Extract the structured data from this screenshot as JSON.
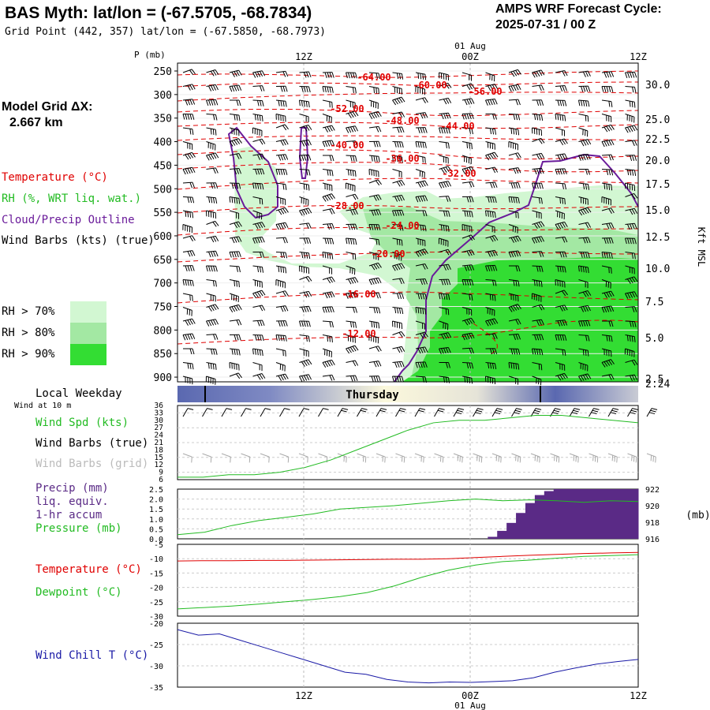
{
  "header": {
    "title": "BAS Myth:  lat/lon = (-67.5705, -68.7834)",
    "subtitle": "Grid Point (442, 357) lat/lon = (-67.5850, -68.7973)",
    "cycle_line1": "AMPS WRF Forecast Cycle:",
    "cycle_line2": "2025-07-31 / 00  Z"
  },
  "sidebar": {
    "grid_title": "Model Grid ΔX:",
    "grid_value": "2.667 km",
    "temperature": "Temperature (°C)",
    "rh": "RH (%, WRT liq. wat.)",
    "cloud": "Cloud/Precip Outline",
    "wind": "Wind Barbs (kts) (true)",
    "rh70": "RH > 70%",
    "rh80": "RH > 80%",
    "rh90": "RH > 90%",
    "local_weekday": "Local Weekday",
    "wind10m": "Wind at 10 m",
    "wind_spd": "Wind Spd (kts)",
    "wind_true": "Wind Barbs (true)",
    "wind_grid": "Wind Barbs (grid)",
    "precip1": "Precip (mm)",
    "precip2": "liq. equiv.",
    "precip3": "1-hr accum",
    "pressure": "Pressure (mb)",
    "temp2": "Temperature (°C)",
    "dewpoint": "Dewpoint (°C)",
    "windchill": "Wind Chill T (°C)"
  },
  "colors": {
    "temperature": "#e00000",
    "rh": "#22cc22",
    "cloud": "#6a1b9a",
    "rh70": "#d2f7d2",
    "rh80": "#a3e8a3",
    "rh90": "#33dd33",
    "precip": "#5a2a86",
    "windchill": "#1a1aa6",
    "weekday_dark": "#5a68b0",
    "weekday_light": "#fbf8dc"
  },
  "chart_data": [
    {
      "type": "heatmap",
      "title": "",
      "ylabel": "P (mb)",
      "ylabel_right": "Kft MSL",
      "x_ticks_top": [
        "12Z",
        "00Z",
        "12Z"
      ],
      "x_date_top": "01 Aug",
      "y_ticks": [
        250,
        300,
        350,
        400,
        450,
        500,
        550,
        600,
        650,
        700,
        750,
        800,
        850,
        900
      ],
      "y_ticks_right": [
        "30.0",
        "25.0",
        "22.5",
        "20.0",
        "17.5",
        "15.0",
        "12.5",
        "10.0",
        "7.5",
        "5.0",
        "2.5",
        "2.24"
      ],
      "temperature_labels": [
        "-64.00",
        "-60.00",
        "-56.00",
        "-52.00",
        "-48.00",
        "-44.00",
        "-40.00",
        "-36.00",
        "-32.00",
        "-28.00",
        "-24.00",
        "-20.00",
        "-16.00",
        "-12.00"
      ],
      "wind_barbs": "true"
    },
    {
      "type": "table",
      "weekday": "Thursday"
    },
    {
      "type": "line",
      "series": [
        {
          "name": "Wind Spd (kts)",
          "values": [
            7,
            7,
            8,
            8,
            9,
            11,
            14,
            18,
            22,
            26,
            29,
            30,
            30,
            31,
            32,
            32,
            31,
            30,
            29
          ]
        }
      ],
      "y_ticks": [
        6,
        9,
        12,
        15,
        18,
        21,
        24,
        27,
        30,
        33,
        36
      ],
      "ylim": [
        6,
        36
      ]
    },
    {
      "type": "bar",
      "series": [
        {
          "name": "Precip (mm)",
          "values": [
            0,
            0,
            0,
            0,
            0,
            0,
            0,
            0,
            0,
            0,
            0,
            0,
            0,
            0,
            0,
            0,
            0,
            0,
            0,
            0,
            0,
            0,
            0,
            0,
            0,
            0,
            0,
            0,
            0,
            0,
            0,
            0,
            0,
            0.1,
            0.4,
            0.8,
            1.3,
            1.8,
            2.2,
            2.4,
            2.5,
            2.5,
            2.5,
            2.5,
            2.5,
            2.5,
            2.5,
            2.5,
            2.5
          ]
        },
        {
          "name": "Pressure (mb)",
          "values": [
            916.5,
            916.8,
            917.6,
            918.2,
            918.6,
            919.0,
            919.6,
            919.8,
            920.0,
            920.3,
            920.6,
            920.8,
            920.6,
            920.7,
            920.6,
            920.4,
            920.6,
            920.5
          ]
        }
      ],
      "y_ticks": [
        "0.0",
        "0.5",
        "1.0",
        "1.5",
        "2.0",
        "2.5"
      ],
      "y_ticks_right": [
        916,
        918,
        920,
        922
      ],
      "ylim": [
        0,
        2.5
      ],
      "ylim_right": [
        916,
        922
      ]
    },
    {
      "type": "line",
      "series": [
        {
          "name": "Temperature (°C)",
          "values": [
            -10.8,
            -10.7,
            -10.7,
            -10.6,
            -10.6,
            -10.5,
            -10.4,
            -10.3,
            -10.2,
            -10.2,
            -10.0,
            -9.6,
            -9.2,
            -8.8,
            -8.5,
            -8.2,
            -8.0,
            -7.8
          ]
        },
        {
          "name": "Dewpoint (°C)",
          "values": [
            -27.5,
            -27.0,
            -26.5,
            -25.8,
            -25.0,
            -24.2,
            -23.2,
            -21.8,
            -19.5,
            -16.5,
            -14.0,
            -12.2,
            -11.0,
            -10.5,
            -9.8,
            -9.2,
            -8.9,
            -8.6
          ]
        }
      ],
      "y_ticks": [
        -5,
        -10,
        -15,
        -20,
        -25,
        -30
      ],
      "ylim": [
        -30,
        -5
      ]
    },
    {
      "type": "line",
      "series": [
        {
          "name": "Wind Chill T (°C)",
          "values": [
            -21.5,
            -22.8,
            -22.5,
            -24.0,
            -25.5,
            -27.0,
            -28.5,
            -30.0,
            -31.5,
            -32.0,
            -33.2,
            -33.8,
            -34.0,
            -33.8,
            -33.9,
            -33.7,
            -33.5,
            -32.8,
            -31.5,
            -30.5,
            -29.6,
            -29.0,
            -28.5
          ]
        }
      ],
      "y_ticks": [
        -20,
        -25,
        -30,
        -35
      ],
      "ylim": [
        -35,
        -20
      ],
      "x_ticks_bottom": [
        "12Z",
        "00Z",
        "12Z"
      ],
      "x_date_bottom": "01 Aug"
    }
  ]
}
